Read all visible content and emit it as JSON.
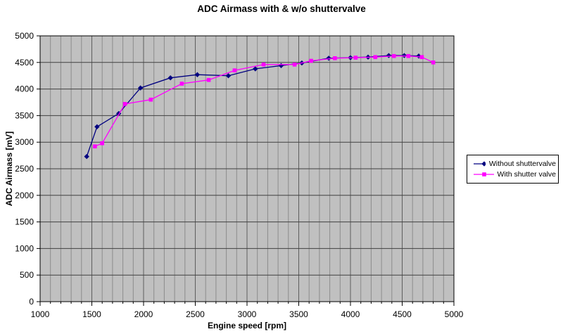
{
  "chart_data": {
    "type": "line",
    "title": "ADC Airmass with & w/o shuttervalve",
    "xlabel": "Engine speed [rpm]",
    "ylabel": "ADC Airmass [mV]",
    "xlim": [
      1000,
      5000
    ],
    "ylim": [
      0,
      5000
    ],
    "x_ticks": [
      1000,
      1500,
      2000,
      2500,
      3000,
      3500,
      4000,
      4500,
      5000
    ],
    "x_minor_step": 100,
    "y_ticks": [
      0,
      500,
      1000,
      1500,
      2000,
      2500,
      3000,
      3500,
      4000,
      4500,
      5000
    ],
    "grid": "horizontal-major and vertical-minor gridlines on",
    "legend_position": "right-outside-middle",
    "colors": {
      "plot_bg": "#c0c0c0",
      "grid_h": "#404040",
      "grid_v_major": "#5e5e5e",
      "grid_v_minor": "#8c8c8c",
      "axis": "#000000",
      "series_without": "#000080",
      "series_with": "#ff00ff"
    },
    "series": [
      {
        "name": "Without shuttervalve",
        "color": "#000080",
        "marker": "diamond",
        "points": [
          [
            1450,
            2730
          ],
          [
            1550,
            3290
          ],
          [
            1760,
            3540
          ],
          [
            1970,
            4020
          ],
          [
            2260,
            4210
          ],
          [
            2520,
            4270
          ],
          [
            2820,
            4250
          ],
          [
            3080,
            4380
          ],
          [
            3330,
            4440
          ],
          [
            3530,
            4490
          ],
          [
            3790,
            4580
          ],
          [
            4000,
            4590
          ],
          [
            4170,
            4600
          ],
          [
            4370,
            4630
          ],
          [
            4520,
            4630
          ],
          [
            4660,
            4620
          ]
        ]
      },
      {
        "name": "With shutter valve",
        "color": "#ff00ff",
        "marker": "square",
        "points": [
          [
            1530,
            2920
          ],
          [
            1600,
            2980
          ],
          [
            1820,
            3720
          ],
          [
            2070,
            3800
          ],
          [
            2370,
            4100
          ],
          [
            2630,
            4170
          ],
          [
            2880,
            4350
          ],
          [
            3160,
            4460
          ],
          [
            3460,
            4460
          ],
          [
            3620,
            4530
          ],
          [
            3850,
            4580
          ],
          [
            4050,
            4590
          ],
          [
            4240,
            4600
          ],
          [
            4420,
            4620
          ],
          [
            4560,
            4620
          ],
          [
            4690,
            4600
          ],
          [
            4800,
            4500
          ]
        ]
      }
    ]
  }
}
